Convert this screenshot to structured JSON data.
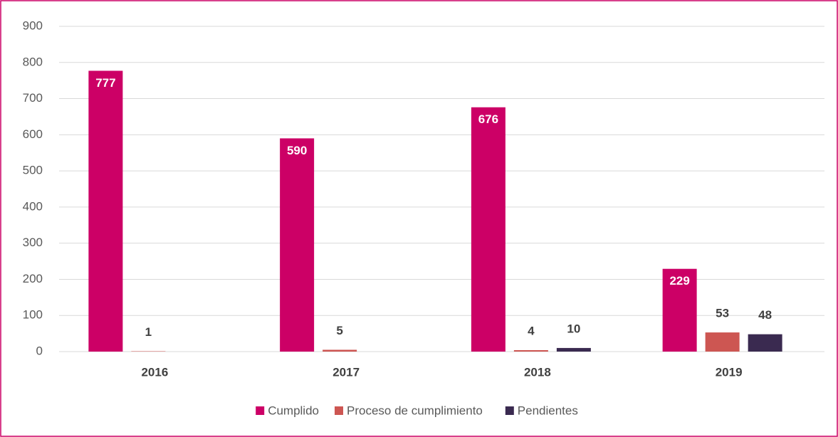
{
  "chart_data": {
    "type": "bar",
    "categories": [
      "2016",
      "2017",
      "2018",
      "2019"
    ],
    "series": [
      {
        "name": "Cumplido",
        "color": "#cc0066",
        "values": [
          777,
          590,
          676,
          229
        ]
      },
      {
        "name": "Proceso de cumplimiento",
        "color": "#cd5652",
        "values": [
          1,
          5,
          4,
          53
        ]
      },
      {
        "name": "Pendientes",
        "color": "#3a2a50",
        "values": [
          null,
          null,
          10,
          48
        ]
      }
    ],
    "ylim": [
      0,
      900
    ],
    "yticks": [
      0,
      100,
      200,
      300,
      400,
      500,
      600,
      700,
      800,
      900
    ],
    "grid": true,
    "legend": "bottom"
  }
}
